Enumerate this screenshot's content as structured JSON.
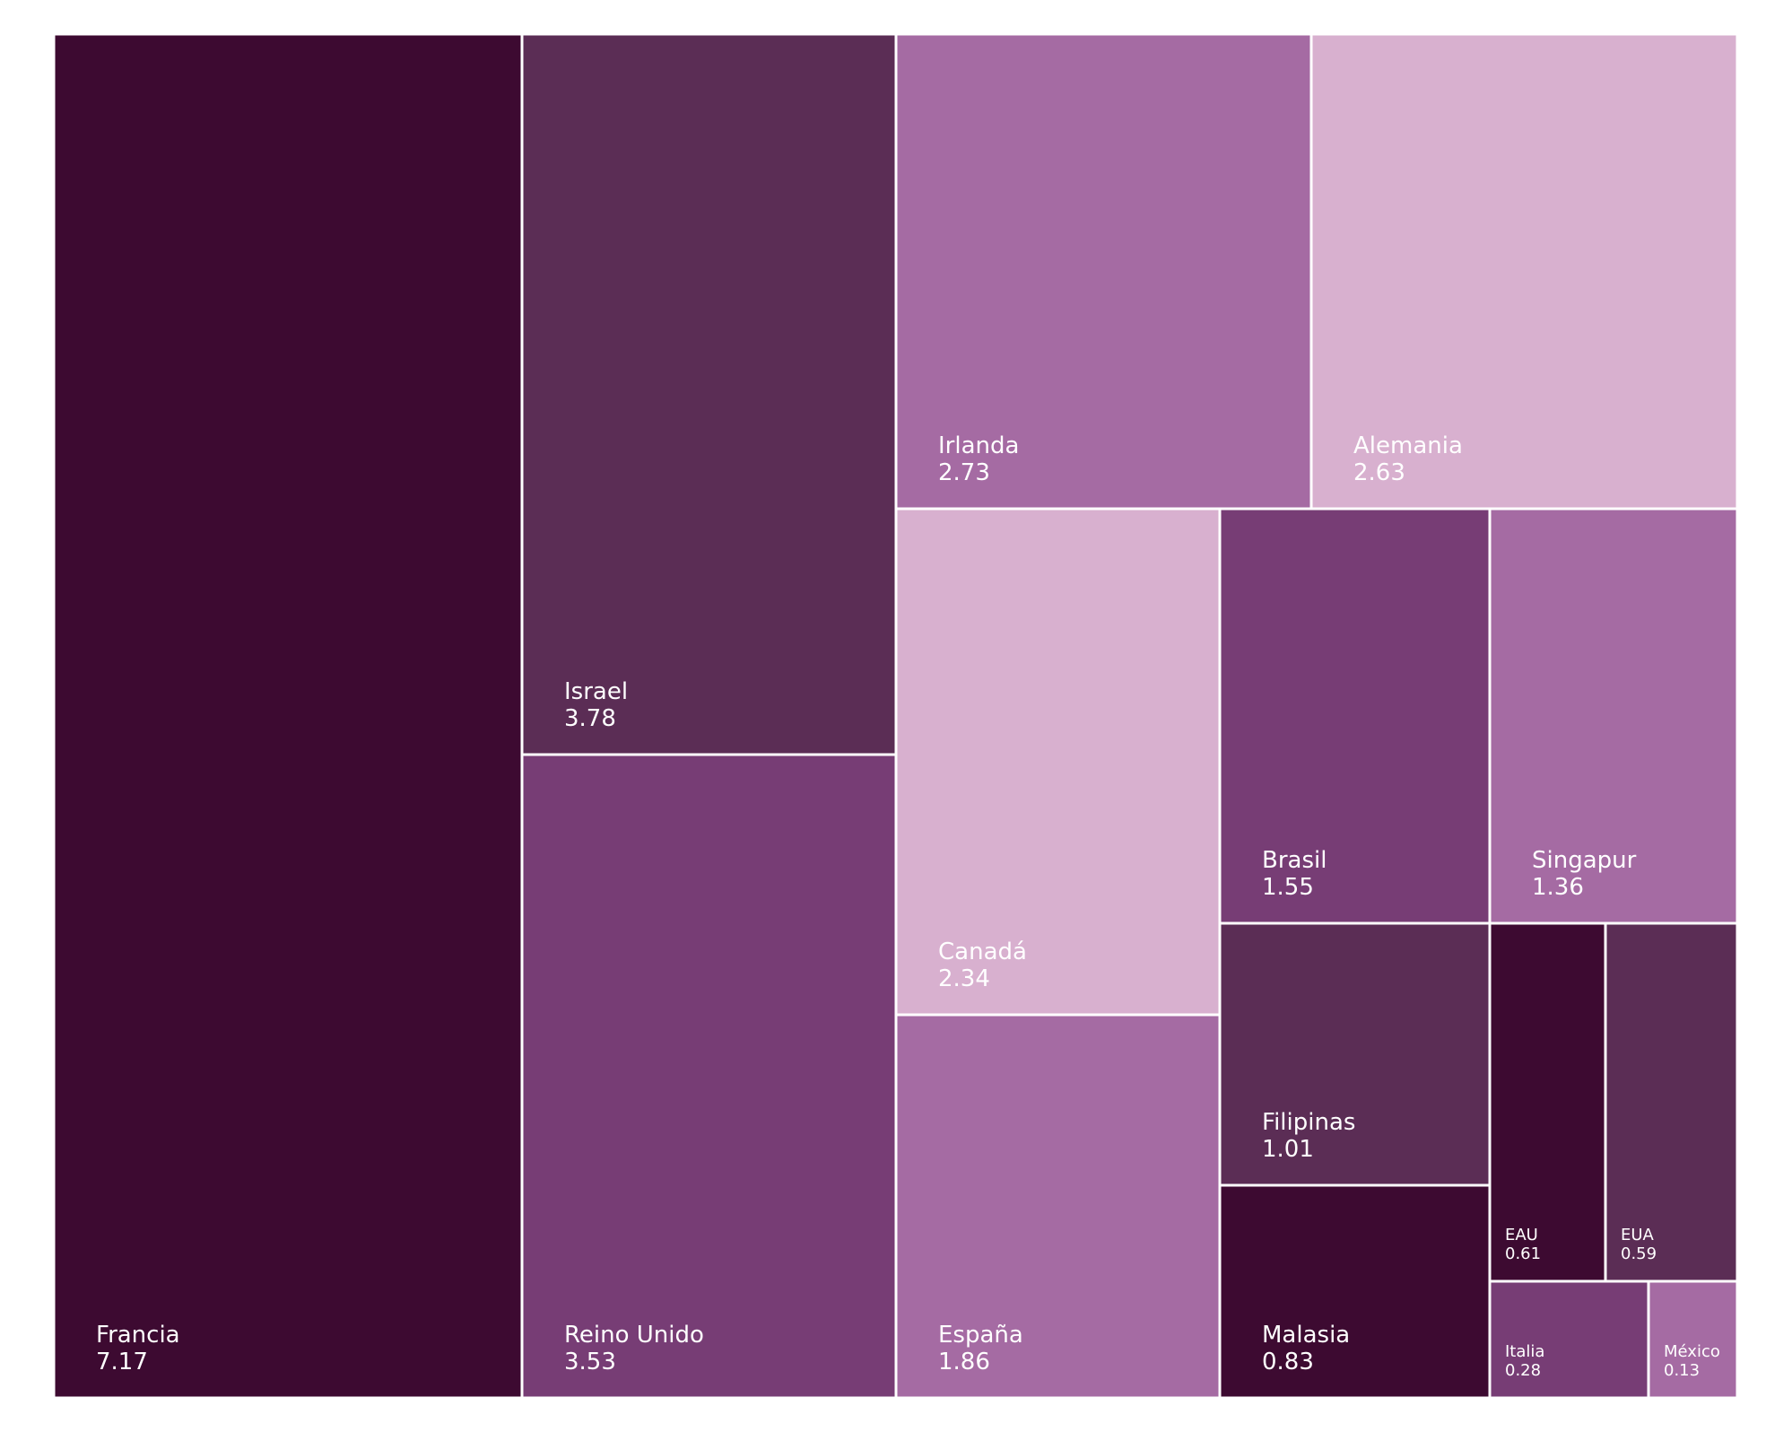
{
  "chart_data": {
    "type": "treemap",
    "title": "",
    "items": [
      {
        "name": "Francia",
        "value": 7.17,
        "color": "#3d0a31"
      },
      {
        "name": "Israel",
        "value": 3.78,
        "color": "#5b2d55"
      },
      {
        "name": "Reino Unido",
        "value": 3.53,
        "color": "#773d75"
      },
      {
        "name": "Irlanda",
        "value": 2.73,
        "color": "#a56ba3"
      },
      {
        "name": "Alemania",
        "value": 2.63,
        "color": "#d8b0cf"
      },
      {
        "name": "Canadá",
        "value": 2.34,
        "color": "#d8b0cf"
      },
      {
        "name": "España",
        "value": 1.86,
        "color": "#a56ba3"
      },
      {
        "name": "Brasil",
        "value": 1.55,
        "color": "#773d75"
      },
      {
        "name": "Singapur",
        "value": 1.36,
        "color": "#a56ba3"
      },
      {
        "name": "Filipinas",
        "value": 1.01,
        "color": "#5b2d55"
      },
      {
        "name": "Malasia",
        "value": 0.83,
        "color": "#3d0a31"
      },
      {
        "name": "EAU",
        "value": 0.61,
        "color": "#3d0a31"
      },
      {
        "name": "EUA",
        "value": 0.59,
        "color": "#5b2d55"
      },
      {
        "name": "Italia",
        "value": 0.28,
        "color": "#773d75"
      },
      {
        "name": "México",
        "value": 0.13,
        "color": "#a56ba3"
      }
    ]
  }
}
